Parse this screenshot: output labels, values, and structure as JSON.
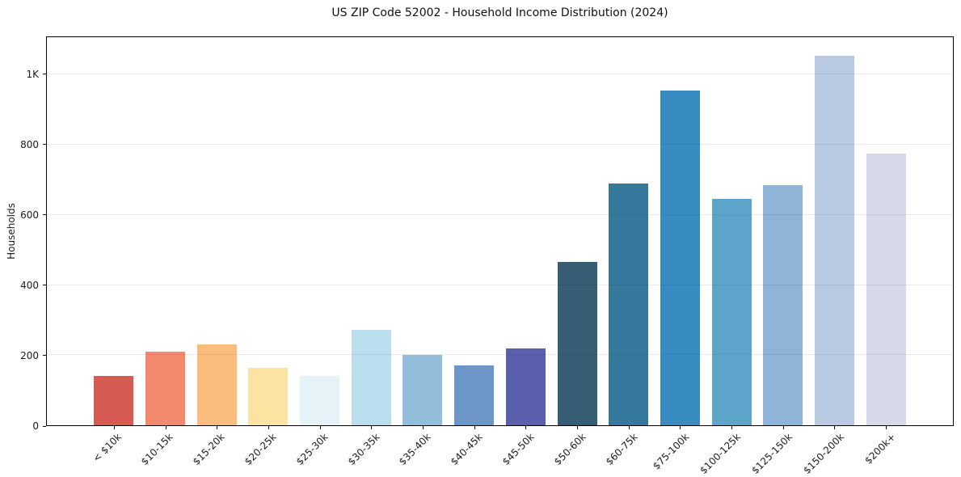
{
  "figure": {
    "background_color": "#ffffff",
    "spine_color": "#000000",
    "text_color": "#1a1a1a"
  },
  "chart_data": {
    "type": "bar",
    "title": "US ZIP Code 52002 - Household Income Distribution (2024)",
    "xlabel": "",
    "ylabel": "Households",
    "categories": [
      "< $10k",
      "$10-15k",
      "$15-20k",
      "$20-25k",
      "$25-30k",
      "$30-35k",
      "$35-40k",
      "$40-45k",
      "$45-50k",
      "$50-60k",
      "$60-75k",
      "$75-100k",
      "$100-125k",
      "$125-150k",
      "$150-200k",
      "$200k+"
    ],
    "values": [
      140,
      210,
      230,
      163,
      140,
      272,
      200,
      170,
      220,
      465,
      690,
      955,
      645,
      685,
      1055,
      775
    ],
    "bar_colors": [
      "#d65b52",
      "#f38a6d",
      "#fabd7d",
      "#fce3a2",
      "#e5f2f7",
      "#badeed",
      "#92bedc",
      "#6d96c8",
      "#5a5fae",
      "#365d73",
      "#35799d",
      "#398cc1",
      "#5ca4c9",
      "#8fb4d8",
      "#b8c9e1",
      "#d7d9e8"
    ],
    "ytick_values": [
      0,
      200,
      400,
      600,
      800,
      1000
    ],
    "ytick_labels": [
      "0",
      "200",
      "400",
      "600",
      "800",
      "1K"
    ],
    "ylim": [
      0,
      1107
    ],
    "grid": "horizontal",
    "gridline_color": "rgba(0,0,0,0.08)",
    "xtick_rotation_deg": 45,
    "legend": "none"
  }
}
